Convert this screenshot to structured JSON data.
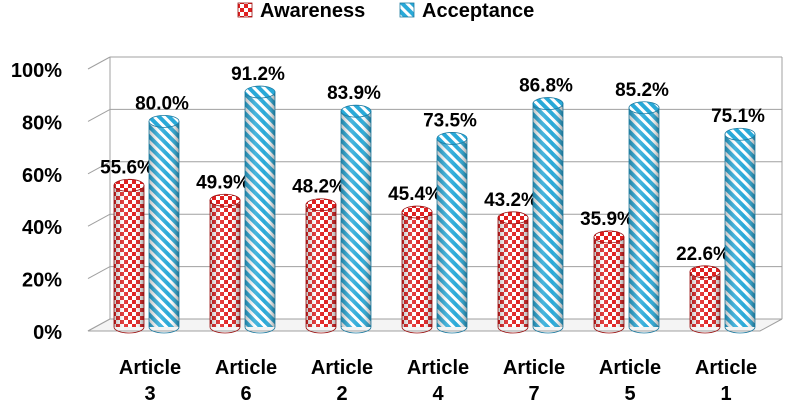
{
  "chart_data": {
    "type": "bar",
    "categories": [
      [
        "Article",
        "3"
      ],
      [
        "Article",
        "6"
      ],
      [
        "Article",
        "2"
      ],
      [
        "Article",
        "4"
      ],
      [
        "Article",
        "7"
      ],
      [
        "Article",
        "5"
      ],
      [
        "Article",
        "1"
      ]
    ],
    "series": [
      {
        "name": "Awareness",
        "values": [
          55.6,
          49.9,
          48.2,
          45.4,
          43.2,
          35.9,
          22.6
        ],
        "labels": [
          "55.6%",
          "49.9%",
          "48.2%",
          "45.4%",
          "43.2%",
          "35.9%",
          "22.6%"
        ],
        "color": "#e02020",
        "pattern": "checkerboard"
      },
      {
        "name": "Acceptance",
        "values": [
          80.0,
          91.2,
          83.9,
          73.5,
          86.8,
          85.2,
          75.1
        ],
        "labels": [
          "80.0%",
          "91.2%",
          "83.9%",
          "73.5%",
          "86.8%",
          "85.2%",
          "75.1%"
        ],
        "color": "#29a9d8",
        "pattern": "diagonal-stripes"
      }
    ],
    "yticks": [
      "0%",
      "20%",
      "40%",
      "60%",
      "80%",
      "100%"
    ],
    "ylim": [
      0,
      100
    ],
    "grid": true,
    "legend": "top-center",
    "title": "",
    "xlabel": "",
    "ylabel": ""
  }
}
